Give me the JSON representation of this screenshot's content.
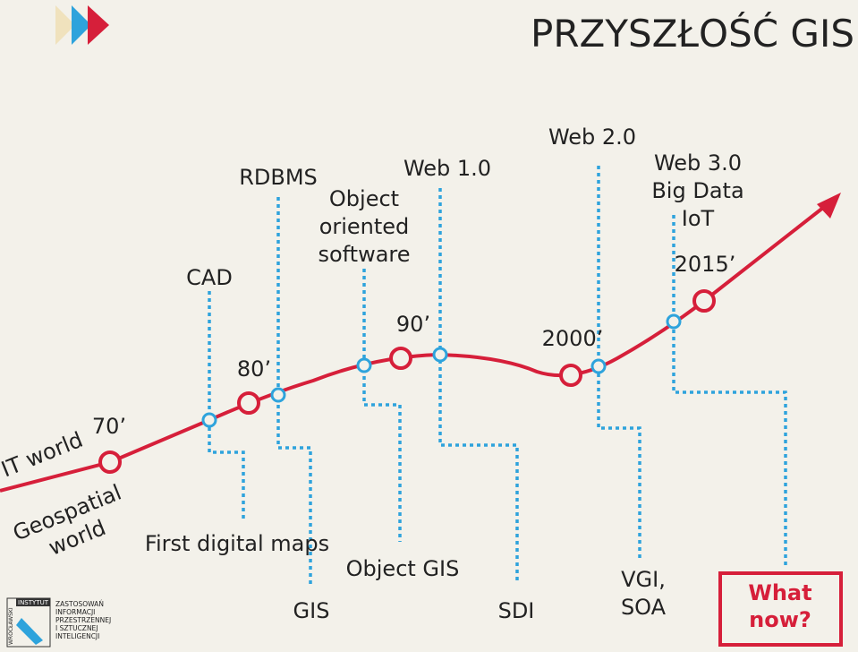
{
  "header": {
    "title": "PRZYSZŁOŚĆ GIS"
  },
  "eras": [
    {
      "top": [
        "CAD"
      ],
      "bottom": [
        "First digital maps"
      ]
    },
    {
      "top": [
        "RDBMS"
      ],
      "bottom": [
        "GIS"
      ]
    },
    {
      "top": [
        "Object",
        "oriented",
        "software"
      ],
      "bottom": [
        "Object GIS"
      ]
    },
    {
      "top": [
        "Web 1.0"
      ],
      "bottom": [
        "SDI"
      ]
    },
    {
      "top": [
        "Web 2.0"
      ],
      "bottom": [
        "VGI,",
        "SOA"
      ]
    },
    {
      "top": [
        "Web 3.0",
        "Big Data",
        "IoT"
      ],
      "bottom": []
    }
  ],
  "decades": [
    "70’",
    "80’",
    "90’",
    "2000’",
    "2015’"
  ],
  "sides": {
    "it": "IT world",
    "geo": [
      "Geospatial",
      "world"
    ]
  },
  "future": [
    "What",
    "now?"
  ],
  "logo": {
    "vertical": "WROCŁAWSKI",
    "badge": "INSTYTUT",
    "lines": [
      "ZASTOSOWAŃ",
      "INFORMACJI",
      "PRZESTRZENNEJ",
      "I SZTUCZNEJ",
      "INTELIGENCJI"
    ]
  }
}
